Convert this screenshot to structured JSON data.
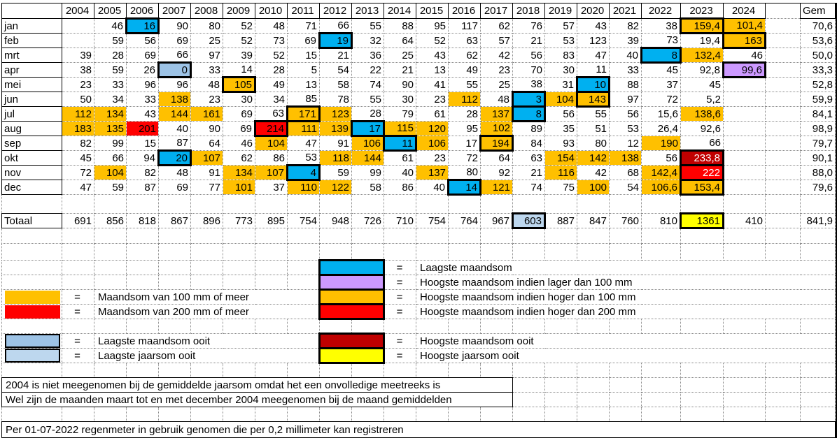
{
  "colors": {
    "cyan": "#00B0F0",
    "purple": "#CC99FF",
    "orange": "#FFC000",
    "red": "#FF0000",
    "darkred": "#C00000",
    "yellow": "#FFFF00",
    "blue1": "#9DC3E6",
    "blue2": "#BDD7EE"
  },
  "equals": "=",
  "table": {
    "corner": "",
    "years": [
      "2004",
      "2005",
      "2006",
      "2007",
      "2008",
      "2009",
      "2010",
      "2011",
      "2012",
      "2013",
      "2014",
      "2015",
      "2016",
      "2017",
      "2018",
      "2019",
      "2020",
      "2021",
      "2022",
      "2023",
      "2024"
    ],
    "gem_header": "Gem",
    "rows": [
      {
        "label": "jan",
        "cells": [
          "",
          "46",
          {
            "v": "16",
            "c": "cyan",
            "b": 1
          },
          "90",
          "80",
          "52",
          "48",
          "71",
          "66",
          "55",
          "88",
          "95",
          "117",
          "62",
          "76",
          "57",
          "43",
          "82",
          "38",
          {
            "v": "159,4",
            "c": "orange",
            "b": 1
          },
          {
            "v": "101,4",
            "c": "orange"
          }
        ],
        "gem": "70,6"
      },
      {
        "label": "feb",
        "cells": [
          "",
          "59",
          "56",
          "69",
          "25",
          "52",
          "73",
          "69",
          {
            "v": "19",
            "c": "cyan",
            "b": 1
          },
          "32",
          "64",
          "52",
          "63",
          "57",
          "21",
          "53",
          "123",
          "39",
          "73",
          "19,4",
          {
            "v": "163",
            "c": "orange",
            "b": 1
          }
        ],
        "gem": "53,6"
      },
      {
        "label": "mrt",
        "cells": [
          "39",
          "28",
          "69",
          "66",
          "97",
          "39",
          "52",
          "15",
          "21",
          "36",
          "25",
          "43",
          "62",
          "42",
          "56",
          "83",
          "47",
          "40",
          {
            "v": "8",
            "c": "cyan",
            "b": 1
          },
          {
            "v": "132,4",
            "c": "orange"
          },
          "46"
        ],
        "gem": "50,0"
      },
      {
        "label": "apr",
        "cells": [
          "38",
          "59",
          "26",
          {
            "v": "0",
            "c": "blue1",
            "b": 1
          },
          "33",
          "14",
          "28",
          "5",
          "54",
          "22",
          "21",
          "13",
          "49",
          "23",
          "70",
          "30",
          "11",
          "33",
          "45",
          "92,8",
          {
            "v": "99,6",
            "c": "purple",
            "b": 1
          }
        ],
        "gem": "33,3"
      },
      {
        "label": "mei",
        "cells": [
          "23",
          "33",
          "96",
          "96",
          "48",
          {
            "v": "105",
            "c": "orange",
            "b": 1
          },
          "49",
          "13",
          "58",
          "74",
          "90",
          "41",
          "55",
          "25",
          "38",
          "31",
          {
            "v": "10",
            "c": "cyan",
            "b": 1
          },
          "88",
          "37",
          "45",
          ""
        ],
        "gem": "52,8"
      },
      {
        "label": "jun",
        "cells": [
          "50",
          "34",
          "33",
          {
            "v": "138",
            "c": "orange"
          },
          "23",
          "30",
          "34",
          "85",
          "78",
          "55",
          "30",
          "23",
          {
            "v": "112",
            "c": "orange"
          },
          "48",
          {
            "v": "3",
            "c": "cyan",
            "b": 1
          },
          {
            "v": "104",
            "c": "orange"
          },
          {
            "v": "143",
            "c": "orange",
            "b": 1
          },
          "97",
          "72",
          "5,2",
          ""
        ],
        "gem": "59,9"
      },
      {
        "label": "jul",
        "cells": [
          {
            "v": "112",
            "c": "orange"
          },
          {
            "v": "134",
            "c": "orange"
          },
          "43",
          {
            "v": "144",
            "c": "orange"
          },
          {
            "v": "161",
            "c": "orange"
          },
          "69",
          "63",
          {
            "v": "171",
            "c": "orange",
            "b": 1
          },
          {
            "v": "123",
            "c": "orange"
          },
          "28",
          "79",
          "61",
          "28",
          {
            "v": "137",
            "c": "orange"
          },
          {
            "v": "8",
            "c": "cyan",
            "b": 1
          },
          "56",
          "55",
          "56",
          "15,6",
          {
            "v": "138,6",
            "c": "orange"
          },
          ""
        ],
        "gem": "84,1"
      },
      {
        "label": "aug",
        "cells": [
          {
            "v": "183",
            "c": "orange"
          },
          {
            "v": "135",
            "c": "orange"
          },
          {
            "v": "201",
            "c": "red"
          },
          "40",
          "90",
          "69",
          {
            "v": "214",
            "c": "red",
            "b": 1
          },
          {
            "v": "111",
            "c": "orange"
          },
          {
            "v": "139",
            "c": "orange"
          },
          {
            "v": "17",
            "c": "cyan",
            "b": 1
          },
          {
            "v": "115",
            "c": "orange"
          },
          {
            "v": "120",
            "c": "orange"
          },
          "95",
          {
            "v": "102",
            "c": "orange"
          },
          "89",
          "35",
          "51",
          "53",
          "26,4",
          "92,6",
          ""
        ],
        "gem": "98,9"
      },
      {
        "label": "sep",
        "cells": [
          "82",
          "99",
          "15",
          "87",
          "64",
          "46",
          {
            "v": "104",
            "c": "orange"
          },
          "47",
          "91",
          {
            "v": "106",
            "c": "orange"
          },
          {
            "v": "11",
            "c": "cyan",
            "b": 1
          },
          {
            "v": "106",
            "c": "orange"
          },
          "17",
          {
            "v": "194",
            "c": "orange",
            "b": 1
          },
          "84",
          "93",
          "80",
          "12",
          {
            "v": "190",
            "c": "orange"
          },
          "66",
          ""
        ],
        "gem": "79,7"
      },
      {
        "label": "okt",
        "cells": [
          "45",
          "66",
          "94",
          {
            "v": "20",
            "c": "cyan",
            "b": 1
          },
          {
            "v": "107",
            "c": "orange"
          },
          "62",
          "86",
          "53",
          {
            "v": "118",
            "c": "orange"
          },
          {
            "v": "144",
            "c": "orange"
          },
          "61",
          "23",
          "72",
          "64",
          "63",
          {
            "v": "154",
            "c": "orange"
          },
          {
            "v": "142",
            "c": "orange"
          },
          {
            "v": "138",
            "c": "orange"
          },
          "56",
          {
            "v": "233,8",
            "c": "darkred",
            "b": 1,
            "w": 1
          },
          ""
        ],
        "gem": "90,1"
      },
      {
        "label": "nov",
        "cells": [
          "72",
          {
            "v": "104",
            "c": "orange"
          },
          "82",
          "48",
          "91",
          {
            "v": "134",
            "c": "orange"
          },
          {
            "v": "107",
            "c": "orange"
          },
          {
            "v": "4",
            "c": "cyan",
            "b": 1
          },
          "59",
          "99",
          "40",
          {
            "v": "137",
            "c": "orange"
          },
          "80",
          "92",
          "21",
          {
            "v": "116",
            "c": "orange"
          },
          "42",
          "68",
          {
            "v": "142,4",
            "c": "orange"
          },
          {
            "v": "222",
            "c": "red",
            "b": 1,
            "w": 1
          },
          ""
        ],
        "gem": "88,0"
      },
      {
        "label": "dec",
        "cells": [
          "47",
          "59",
          "87",
          "69",
          "77",
          {
            "v": "101",
            "c": "orange"
          },
          "37",
          {
            "v": "110",
            "c": "orange"
          },
          {
            "v": "122",
            "c": "orange"
          },
          "58",
          "86",
          "40",
          {
            "v": "14",
            "c": "cyan",
            "b": 1
          },
          {
            "v": "121",
            "c": "orange"
          },
          "74",
          "75",
          {
            "v": "100",
            "c": "orange"
          },
          "54",
          {
            "v": "106,6",
            "c": "orange"
          },
          {
            "v": "153,4",
            "c": "orange",
            "b": 1
          },
          ""
        ],
        "gem": "79,6"
      }
    ],
    "total_row": {
      "label": "Totaal",
      "cells": [
        "691",
        "856",
        "818",
        "867",
        "896",
        "773",
        "895",
        "754",
        "948",
        "726",
        "710",
        "754",
        "764",
        "967",
        {
          "v": "603",
          "c": "blue2",
          "b": 1
        },
        "887",
        "847",
        "760",
        "810",
        {
          "v": "1361",
          "c": "yellow",
          "b": 1
        },
        "410"
      ],
      "gem": "841,9"
    }
  },
  "legend_right": [
    {
      "color": "cyan",
      "label": "Laagste maandsom"
    },
    {
      "color": "purple",
      "label": "Hoogste maandsom indien lager dan 100 mm"
    },
    {
      "color": "orange",
      "label": "Hoogste maandsom indien hoger dan 100 mm"
    },
    {
      "color": "red",
      "label": "Hoogste maandsom indien hoger dan 200 mm"
    },
    {
      "color": "darkred",
      "label": "Hoogste maandsom ooit"
    },
    {
      "color": "yellow",
      "label": "Hoogste jaarsom ooit"
    }
  ],
  "legend_left": [
    {
      "color": "orange",
      "label": "Maandsom van 100 mm of meer"
    },
    {
      "color": "red",
      "label": "Maandsom van 200 mm of meer"
    },
    {
      "color": "blue1",
      "label": "Laagste maandsom ooit"
    },
    {
      "color": "blue2",
      "label": "Laagste jaarsom ooit"
    }
  ],
  "notes": [
    "2004 is niet meegenomen bij de gemiddelde jaarsom omdat het een onvolledige meetreeks is",
    "Wel zijn de maanden maart tot en met december 2004 meegenomen bij de maand gemiddelden",
    "Per 01-07-2022 regenmeter in gebruik genomen die per 0,2 millimeter kan registreren"
  ]
}
